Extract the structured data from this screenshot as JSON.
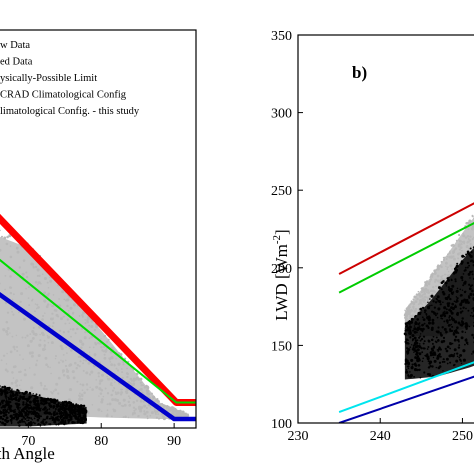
{
  "chart_data": [
    {
      "panel": "a",
      "type": "scatter",
      "xlabel": "ith Angle",
      "ylabel": "",
      "xlim": [
        62,
        93
      ],
      "ylim": [
        95,
        360
      ],
      "xticks": [
        70,
        80,
        90
      ],
      "yticks": [],
      "grid": false,
      "legend_position": "top-left",
      "legend": [
        {
          "label": "w Data",
          "color": "#999999",
          "marker": "scatter"
        },
        {
          "label": "ed Data",
          "color": "#000000",
          "marker": "scatter"
        },
        {
          "label": "ysically-Possible Limit",
          "color": "#ff0000",
          "marker": "line"
        },
        {
          "label": "CRAD Climatological Config",
          "color": "#0000cc",
          "marker": "line"
        },
        {
          "label": "limatological Config. - this study",
          "color": "#00dd00",
          "marker": "line"
        }
      ],
      "series": [
        {
          "name": "w Data",
          "style": "gray-cloud",
          "color": "#b8b8b8",
          "upper": [
            [
              62,
              230
            ],
            [
              70,
              215
            ],
            [
              80,
              160
            ],
            [
              88,
              112
            ],
            [
              92,
              104
            ]
          ],
          "lower": [
            [
              62,
              110
            ],
            [
              70,
              104
            ],
            [
              80,
              102
            ],
            [
              88,
              101
            ],
            [
              92,
              101
            ]
          ]
        },
        {
          "name": "ed Data",
          "style": "black-cloud",
          "color": "#000000",
          "upper": [
            [
              62,
              128
            ],
            [
              66,
              122
            ],
            [
              70,
              118
            ],
            [
              74,
              113
            ],
            [
              78,
              109
            ]
          ],
          "lower": [
            [
              62,
              96
            ],
            [
              70,
              96
            ],
            [
              78,
              98
            ]
          ]
        },
        {
          "name": "ysically-Possible Limit",
          "color": "#ff0000",
          "width": 7,
          "x": [
            62,
            90.3,
            93
          ],
          "y": [
            255,
            112,
            112
          ]
        },
        {
          "name": "limatological Config. - this study",
          "color": "#00dd00",
          "width": 2,
          "x": [
            62,
            90.3,
            93
          ],
          "y": [
            223,
            112,
            112
          ]
        },
        {
          "name": "CRAD Climatological Config",
          "color": "#0000cc",
          "width": 4.5,
          "x": [
            62,
            90,
            93
          ],
          "y": [
            198,
            101,
            101
          ]
        }
      ]
    },
    {
      "panel": "b",
      "panel_label": "b)",
      "type": "scatter",
      "xlabel": "",
      "ylabel_text": "LWD [Wm",
      "ylabel_sup": "-2",
      "ylabel_end": "]",
      "xlim": [
        230,
        257
      ],
      "ylim": [
        100,
        350
      ],
      "xticks": [
        230,
        240,
        250
      ],
      "yticks": [
        100,
        150,
        200,
        250,
        300,
        350
      ],
      "grid": false,
      "series": [
        {
          "name": "gray",
          "color": "#b8b8b8",
          "upper": [
            [
              243,
              172
            ],
            [
              247,
              200
            ],
            [
              251,
              230
            ],
            [
              254,
              248
            ],
            [
              257,
              252
            ]
          ],
          "lower": [
            [
              243,
              156
            ],
            [
              247,
              156
            ],
            [
              251,
              162
            ],
            [
              254,
              170
            ],
            [
              257,
              176
            ]
          ]
        },
        {
          "name": "black",
          "color": "#000000",
          "upper": [
            [
              243,
              162
            ],
            [
              246,
              178
            ],
            [
              250,
              205
            ],
            [
              253,
              222
            ],
            [
              257,
              232
            ]
          ],
          "lower": [
            [
              243,
              128
            ],
            [
              247,
              130
            ],
            [
              251,
              136
            ],
            [
              254,
              142
            ],
            [
              257,
              148
            ]
          ]
        },
        {
          "name": "red",
          "color": "#cc0000",
          "width": 2,
          "x": [
            235,
            257
          ],
          "y": [
            196,
            257
          ]
        },
        {
          "name": "green",
          "color": "#00cc00",
          "width": 2,
          "x": [
            235,
            257
          ],
          "y": [
            184,
            244
          ]
        },
        {
          "name": "cyan",
          "color": "#00e5ee",
          "width": 2,
          "x": [
            235,
            257
          ],
          "y": [
            107,
            150
          ]
        },
        {
          "name": "blue",
          "color": "#0000aa",
          "width": 2,
          "x": [
            235,
            257
          ],
          "y": [
            100,
            140
          ]
        }
      ]
    }
  ]
}
